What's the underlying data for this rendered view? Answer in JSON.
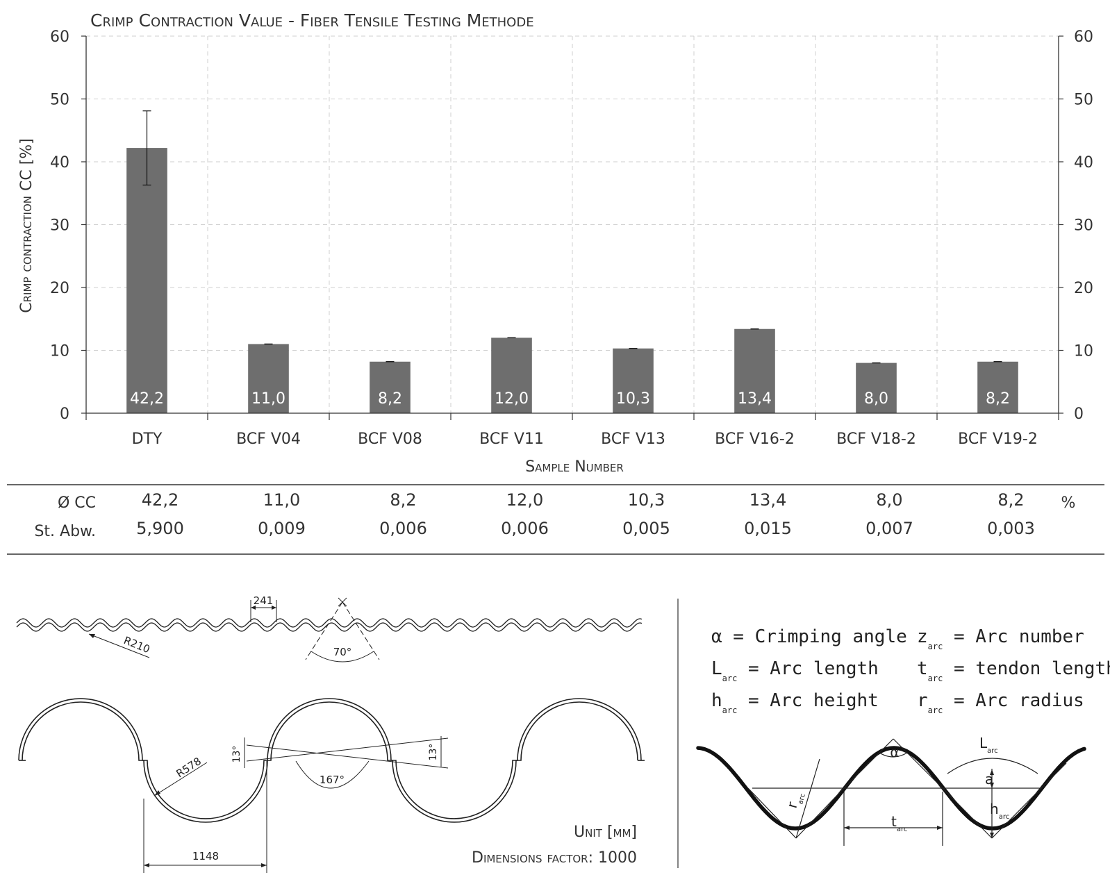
{
  "chart_data": {
    "type": "bar",
    "title": "Crimp Contraction Value - Fiber Tensile Testing Methode",
    "xlabel": "Sample Number",
    "ylabel": "Crimp contraction CC [%]",
    "ylim": [
      0,
      60
    ],
    "yticks": [
      "0",
      "10",
      "20",
      "30",
      "40",
      "50",
      "60"
    ],
    "categories": [
      "DTY",
      "BCF V04",
      "BCF V08",
      "BCF V11",
      "BCF V13",
      "BCF V16-2",
      "BCF V18-2",
      "BCF V19-2"
    ],
    "values": [
      42.2,
      11.0,
      8.2,
      12.0,
      10.3,
      13.4,
      8.0,
      8.2
    ],
    "errors": [
      5.9,
      0.009,
      0.006,
      0.006,
      0.005,
      0.015,
      0.007,
      0.003
    ],
    "data_labels": [
      "42,2",
      "11,0",
      "8,2",
      "12,0",
      "10,3",
      "13,4",
      "8,0",
      "8,2"
    ],
    "grid": true,
    "bar_color": "#6e6e6e"
  },
  "table": {
    "row_mean_label": "Ø CC",
    "row_sd_label": "St. Abw.",
    "mean_values": [
      "42,2",
      "11,0",
      "8,2",
      "12,0",
      "10,3",
      "13,4",
      "8,0",
      "8,2"
    ],
    "sd_values": [
      "5,900",
      "0,009",
      "0,006",
      "0,006",
      "0,005",
      "0,015",
      "0,007",
      "0,003"
    ],
    "unit": "%"
  },
  "drawing": {
    "dim_241": "241",
    "dim_r210": "R210",
    "angle_70": "70°",
    "dim_r578": "R578",
    "angle_13_left": "13°",
    "angle_13_right": "13°",
    "angle_167": "167°",
    "dim_1148": "1148",
    "unit_label": "Unit [mm]",
    "factor_label": "Dimensions factor: 1000"
  },
  "legend": {
    "alpha": "α = Crimping angle",
    "z_main": "z",
    "z_sub": "arc",
    "z_rest": " = Arc number",
    "L_main": "L",
    "L_sub": "arc",
    "L_rest": " = Arc length",
    "t_main": "t",
    "t_sub": "arc",
    "t_rest": " = tendon length",
    "h_main": "h",
    "h_sub": "arc",
    "h_rest": " = Arc height",
    "r_main": "r",
    "r_sub": "arc",
    "r_rest": " = Arc radius"
  },
  "schematic": {
    "alpha": "α",
    "L": "L",
    "L_sub": "arc",
    "a": "a",
    "h": "h",
    "h_sub": "arc",
    "r": "r",
    "r_sub": "arc",
    "t": "t",
    "t_sub": "arc"
  }
}
